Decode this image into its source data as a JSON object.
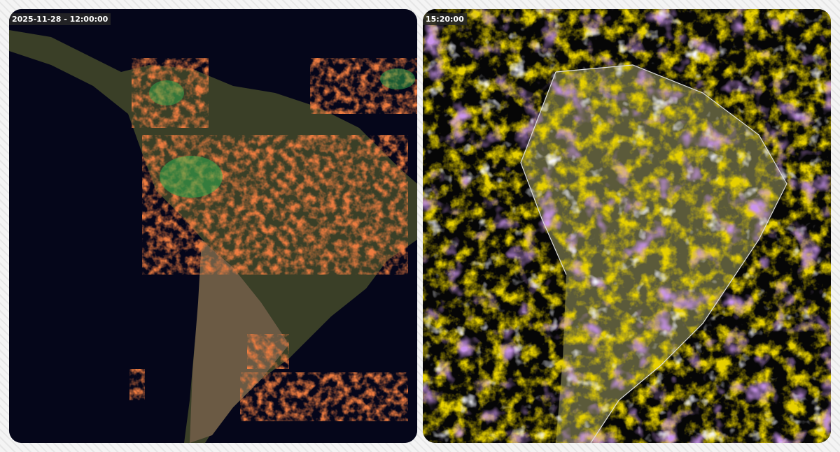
{
  "panels": [
    {
      "timestamp": "2025-11-28 - 12:00:00"
    },
    {
      "timestamp": "15:20:00"
    }
  ]
}
